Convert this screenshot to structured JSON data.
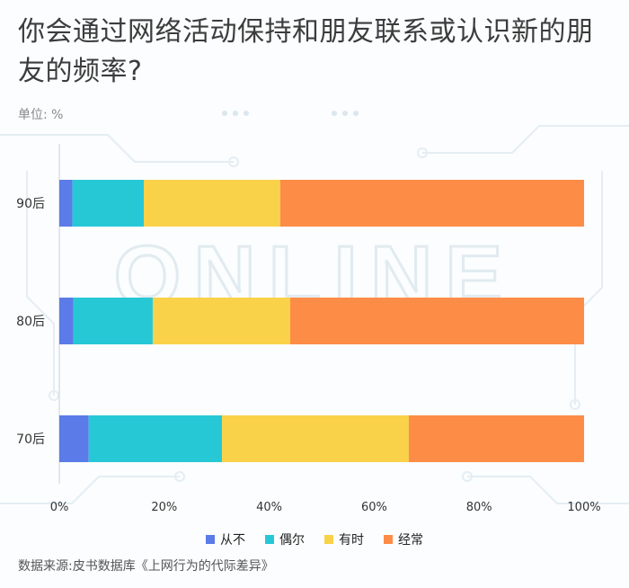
{
  "header": {
    "title": "你会通过网络活动保持和朋友联系或认识新的朋友的频率?",
    "unit": "单位: %"
  },
  "source": "数据来源:皮书数据库《上网行为的代际差异》",
  "watermark": "ONLINE",
  "colors": {
    "never": "#5b7be8",
    "rarely": "#27c8d6",
    "sometimes": "#fad24a",
    "often": "#fd8c47",
    "grid": "#e2e8ec",
    "axis": "#c9d2d8",
    "tick": "#333333"
  },
  "chart_data": {
    "type": "bar",
    "orientation": "horizontal",
    "stacked": true,
    "categories": [
      "90后",
      "80后",
      "70后"
    ],
    "series": [
      {
        "name": "从不",
        "color": "#5b7be8",
        "values": [
          2.5,
          2.7,
          5.6
        ]
      },
      {
        "name": "偶尔",
        "color": "#27c8d6",
        "values": [
          13.6,
          15.1,
          25.4
        ]
      },
      {
        "name": "有时",
        "color": "#fad24a",
        "values": [
          26.0,
          26.2,
          35.6
        ]
      },
      {
        "name": "经常",
        "color": "#fd8c47",
        "values": [
          57.9,
          56.0,
          33.4
        ]
      }
    ],
    "xlim": [
      0,
      100
    ],
    "xticks": [
      "0%",
      "20%",
      "40%",
      "60%",
      "80%",
      "100%"
    ],
    "xlabel": "",
    "ylabel": "",
    "legend": "bottom-center",
    "grid": false
  }
}
